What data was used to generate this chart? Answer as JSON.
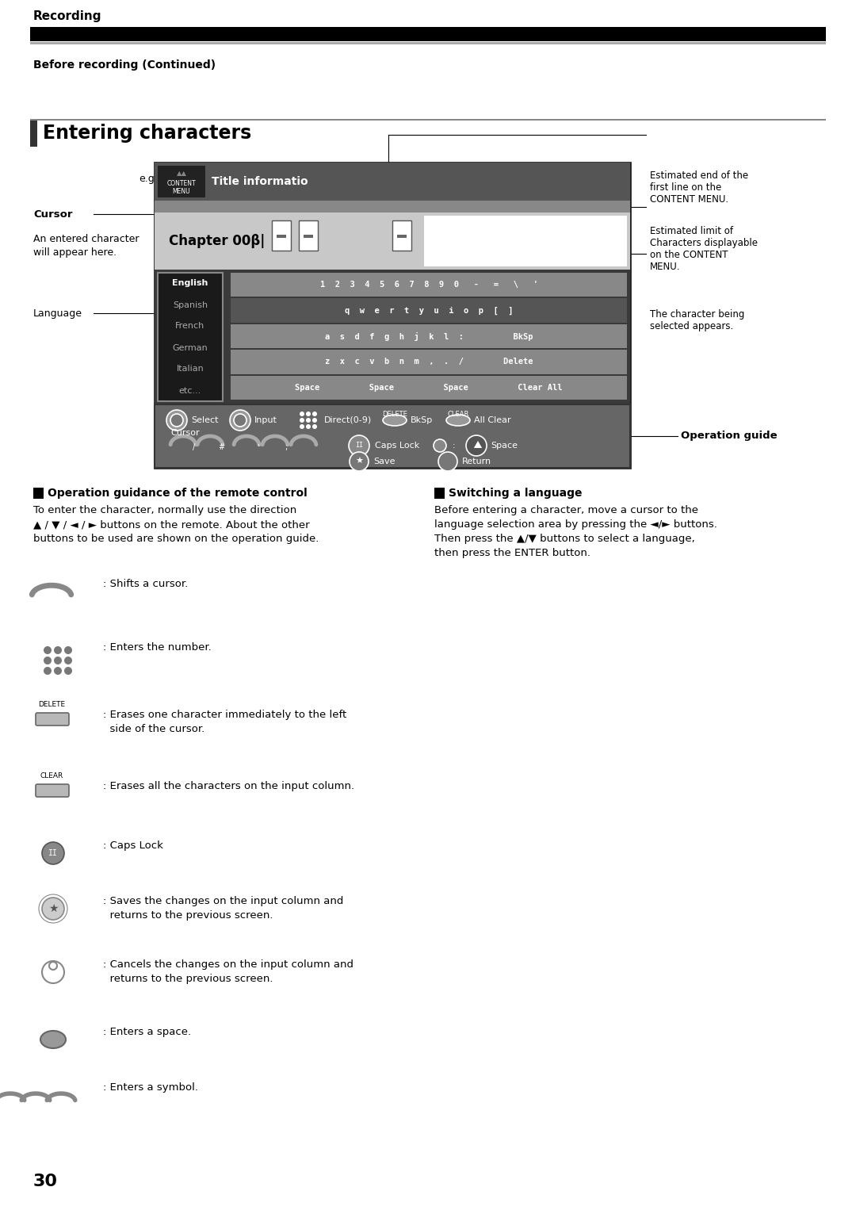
{
  "page_bg": "#ffffff",
  "header_bar_color": "#000000",
  "header_line_color": "#999999",
  "header_text": "Recording",
  "subheader_text": "Before recording (Continued)",
  "section_title": "Entering characters",
  "annotations_right": [
    "Estimated end of the\nfirst line on the\nCONTENT MENU.",
    "Estimated limit of\nCharacters displayable\non the CONTENT\nMENU.",
    "The character being\nselected appears."
  ],
  "op_guide_label": "Operation guide",
  "section2_title": "Operation guidance of the remote control",
  "section2_text": "To enter the character, normally use the direction\n▲ / ▼ / ◄ / ► buttons on the remote. About the other\nbuttons to be used are shown on the operation guide.",
  "section3_title": "Switching a language",
  "section3_text": "Before entering a character, move a cursor to the\nlanguage selection area by pressing the ◄/► buttons.\nThen press the ▲/▼ buttons to select a language,\nthen press the ENTER button.",
  "page_number": "30"
}
